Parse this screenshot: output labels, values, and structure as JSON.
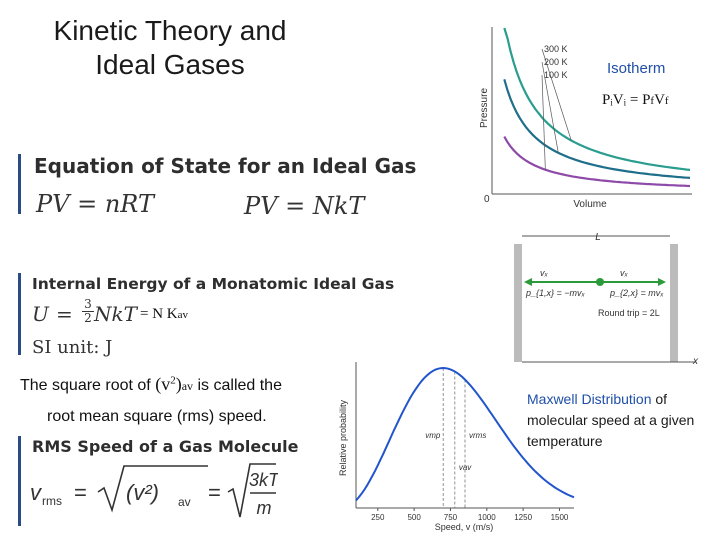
{
  "slide": {
    "title_line1": "Kinetic Theory and",
    "title_line2": "Ideal Gases"
  },
  "isotherm": {
    "label": "Isotherm",
    "equation": "PᵢVᵢ = P_fV_f",
    "equation_lhs": "PᵢVᵢ",
    "equation_eq": "=",
    "equation_rhs": "P",
    "equation_rhs_sub1": "f",
    "equation_rhs_v": "V",
    "equation_rhs_sub2": "f",
    "curve_labels": [
      "300 K",
      "200 K",
      "100 K"
    ],
    "y_axis_label": "Pressure",
    "x_axis_label": "Volume",
    "origin_label": "0",
    "colors": {
      "t300": "#2a9d8f",
      "t200": "#1f6f8b",
      "t100": "#8e4aa8"
    }
  },
  "eos": {
    "heading": "Equation of State for an Ideal Gas",
    "eq1": "PV = nRT",
    "eq2": "PV = NkT"
  },
  "energy": {
    "heading": "Internal Energy of a Monatomic Ideal Gas",
    "U": "U",
    "eq": "=",
    "frac_num": "3",
    "frac_den": "2",
    "NkT": "NkT",
    "kav_eq": "= N K",
    "kav_sub": "av",
    "si": "SI unit: J"
  },
  "rms_text": {
    "line1_a": "The square root of",
    "line1_v": "(v",
    "line1_sup": "2",
    "line1_paren": ")",
    "line1_sub": "av",
    "line1_b": "is called the",
    "line2": "root mean square (rms) speed."
  },
  "rms": {
    "heading": "RMS Speed of a Gas Molecule",
    "v": "v",
    "v_sub": "rms",
    "eq": "=",
    "inner": "(v²)",
    "inner_sub": "av",
    "eq2": "=",
    "num": "3kT",
    "den": "m"
  },
  "box": {
    "L": "L",
    "vx1": "vₓ",
    "vx2": "vₓ",
    "mom1": "p_{1,x} = −mvₓ",
    "mom2": "p_{2,x} = mvₓ",
    "round_trip": "Round trip = 2L",
    "x_axis": "x",
    "line_color": "#2a9a3a"
  },
  "maxwell": {
    "caption_blue": "Maxwell Distribution",
    "caption_rest": "of molecular speed at a given temperature",
    "y_axis_label": "Relative probability",
    "x_axis_label": "Speed, v (m/s)",
    "curve_color": "#2255cc",
    "markers": [
      "v_mp",
      "v_rms",
      "v_av"
    ]
  },
  "chart_data": [
    {
      "type": "line",
      "title": "",
      "xlabel": "Volume",
      "ylabel": "Pressure",
      "series": [
        {
          "name": "300 K",
          "x": [
            0.15,
            0.25,
            0.4,
            0.6,
            0.8,
            1.0
          ],
          "values": [
            6.0,
            3.6,
            2.25,
            1.5,
            1.13,
            0.9
          ]
        },
        {
          "name": "200 K",
          "x": [
            0.15,
            0.25,
            0.4,
            0.6,
            0.8,
            1.0
          ],
          "values": [
            4.0,
            2.4,
            1.5,
            1.0,
            0.75,
            0.6
          ]
        },
        {
          "name": "100 K",
          "x": [
            0.15,
            0.25,
            0.4,
            0.6,
            0.8,
            1.0
          ],
          "values": [
            2.0,
            1.2,
            0.75,
            0.5,
            0.38,
            0.3
          ]
        }
      ],
      "grid": false,
      "legend": "annotated on curves"
    },
    {
      "type": "line",
      "title": "",
      "xlabel": "Speed, v (m/s)",
      "ylabel": "Relative probability",
      "xticks": [
        250,
        500,
        750,
        1000,
        1250,
        1500
      ],
      "xlim": [
        100,
        1600
      ],
      "series": [
        {
          "name": "",
          "x": [
            100,
            250,
            400,
            500,
            600,
            700,
            750,
            800,
            900,
            1000,
            1100,
            1250,
            1400,
            1500
          ],
          "values": [
            0.04,
            0.25,
            0.6,
            0.82,
            0.96,
            1.0,
            0.99,
            0.96,
            0.84,
            0.66,
            0.47,
            0.24,
            0.1,
            0.05
          ]
        }
      ],
      "markers": {
        "v_mp": 700,
        "v_av": 780,
        "v_rms": 850
      },
      "grid": false
    }
  ]
}
